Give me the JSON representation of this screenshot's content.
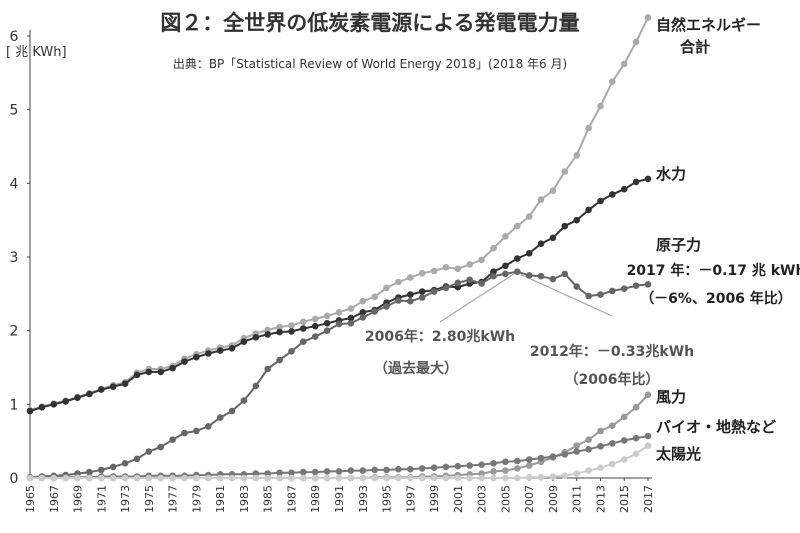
{
  "chart_data": {
    "type": "line",
    "title": "図２：全世界の低炭素電源による発電電力量",
    "subtitle": "出典：BP「Statistical Review of World Energy 2018」(2018 年6 月)",
    "ylabel": "[ 兆 KWh]",
    "xlabel": "",
    "ylim": [
      0,
      6
    ],
    "xlim": [
      1965,
      2017
    ],
    "yticks": [
      "0",
      "1",
      "2",
      "3",
      "4",
      "5",
      "6"
    ],
    "xticks": [
      "1965",
      "1967",
      "1969",
      "1971",
      "1973",
      "1975",
      "1977",
      "1979",
      "1981",
      "1983",
      "1985",
      "1987",
      "1989",
      "1991",
      "1993",
      "1995",
      "1997",
      "1999",
      "2001",
      "2003",
      "2005",
      "2007",
      "2009",
      "2011",
      "2013",
      "2015",
      "2017"
    ],
    "grid": false,
    "legend": "none",
    "series": [
      {
        "name": "自然エネルギー合計",
        "label_lines": [
          "自然エネルギー",
          "合計"
        ],
        "color": "#aaaaaa",
        "x": [
          1965,
          1966,
          1967,
          1968,
          1969,
          1970,
          1971,
          1972,
          1973,
          1974,
          1975,
          1976,
          1977,
          1978,
          1979,
          1980,
          1981,
          1982,
          1983,
          1984,
          1985,
          1986,
          1987,
          1988,
          1989,
          1990,
          1991,
          1992,
          1993,
          1994,
          1995,
          1996,
          1997,
          1998,
          1999,
          2000,
          2001,
          2002,
          2003,
          2004,
          2005,
          2006,
          2007,
          2008,
          2009,
          2010,
          2011,
          2012,
          2013,
          2014,
          2015,
          2016,
          2017
        ],
        "values": [
          0.92,
          0.97,
          1.01,
          1.05,
          1.1,
          1.15,
          1.21,
          1.26,
          1.3,
          1.43,
          1.48,
          1.48,
          1.52,
          1.62,
          1.68,
          1.73,
          1.77,
          1.8,
          1.9,
          1.96,
          2.01,
          2.05,
          2.07,
          2.12,
          2.16,
          2.2,
          2.25,
          2.3,
          2.4,
          2.46,
          2.58,
          2.66,
          2.72,
          2.78,
          2.81,
          2.86,
          2.84,
          2.9,
          2.96,
          3.12,
          3.28,
          3.42,
          3.55,
          3.78,
          3.9,
          4.16,
          4.38,
          4.75,
          5.05,
          5.38,
          5.62,
          5.92,
          6.25
        ]
      },
      {
        "name": "水力",
        "label_lines": [
          "水力"
        ],
        "color": "#333333",
        "x": [
          1965,
          1966,
          1967,
          1968,
          1969,
          1970,
          1971,
          1972,
          1973,
          1974,
          1975,
          1976,
          1977,
          1978,
          1979,
          1980,
          1981,
          1982,
          1983,
          1984,
          1985,
          1986,
          1987,
          1988,
          1989,
          1990,
          1991,
          1992,
          1993,
          1994,
          1995,
          1996,
          1997,
          1998,
          1999,
          2000,
          2001,
          2002,
          2003,
          2004,
          2005,
          2006,
          2007,
          2008,
          2009,
          2010,
          2011,
          2012,
          2013,
          2014,
          2015,
          2016,
          2017
        ],
        "values": [
          0.91,
          0.96,
          1.0,
          1.04,
          1.09,
          1.14,
          1.2,
          1.24,
          1.28,
          1.4,
          1.44,
          1.44,
          1.49,
          1.58,
          1.64,
          1.69,
          1.73,
          1.76,
          1.85,
          1.91,
          1.95,
          1.98,
          1.99,
          2.03,
          2.06,
          2.1,
          2.14,
          2.17,
          2.25,
          2.28,
          2.38,
          2.45,
          2.49,
          2.53,
          2.55,
          2.6,
          2.59,
          2.64,
          2.66,
          2.8,
          2.88,
          2.98,
          3.05,
          3.18,
          3.26,
          3.42,
          3.5,
          3.64,
          3.76,
          3.85,
          3.92,
          4.02,
          4.06
        ]
      },
      {
        "name": "原子力",
        "label_lines": [
          "原子力"
        ],
        "color": "#666666",
        "x": [
          1965,
          1966,
          1967,
          1968,
          1969,
          1970,
          1971,
          1972,
          1973,
          1974,
          1975,
          1976,
          1977,
          1978,
          1979,
          1980,
          1981,
          1982,
          1983,
          1984,
          1985,
          1986,
          1987,
          1988,
          1989,
          1990,
          1991,
          1992,
          1993,
          1994,
          1995,
          1996,
          1997,
          1998,
          1999,
          2000,
          2001,
          2002,
          2003,
          2004,
          2005,
          2006,
          2007,
          2008,
          2009,
          2010,
          2011,
          2012,
          2013,
          2014,
          2015,
          2016,
          2017
        ],
        "values": [
          0.01,
          0.02,
          0.03,
          0.04,
          0.06,
          0.08,
          0.11,
          0.15,
          0.2,
          0.26,
          0.36,
          0.42,
          0.52,
          0.61,
          0.64,
          0.7,
          0.82,
          0.91,
          1.05,
          1.25,
          1.48,
          1.6,
          1.72,
          1.85,
          1.92,
          2.0,
          2.09,
          2.1,
          2.18,
          2.26,
          2.33,
          2.41,
          2.4,
          2.45,
          2.53,
          2.58,
          2.65,
          2.69,
          2.64,
          2.74,
          2.77,
          2.8,
          2.75,
          2.74,
          2.7,
          2.77,
          2.6,
          2.47,
          2.49,
          2.54,
          2.57,
          2.61,
          2.63
        ]
      },
      {
        "name": "風力",
        "label_lines": [
          "風力"
        ],
        "color": "#999999",
        "x": [
          1965,
          1966,
          1967,
          1968,
          1969,
          1970,
          1971,
          1972,
          1973,
          1974,
          1975,
          1976,
          1977,
          1978,
          1979,
          1980,
          1981,
          1982,
          1983,
          1984,
          1985,
          1986,
          1987,
          1988,
          1989,
          1990,
          1991,
          1992,
          1993,
          1994,
          1995,
          1996,
          1997,
          1998,
          1999,
          2000,
          2001,
          2002,
          2003,
          2004,
          2005,
          2006,
          2007,
          2008,
          2009,
          2010,
          2011,
          2012,
          2013,
          2014,
          2015,
          2016,
          2017
        ],
        "values": [
          0,
          0,
          0,
          0,
          0,
          0,
          0,
          0,
          0,
          0,
          0,
          0,
          0,
          0,
          0,
          0,
          0,
          0,
          0,
          0,
          0,
          0,
          0,
          0,
          0,
          0,
          0,
          0,
          0,
          0.01,
          0.01,
          0.01,
          0.01,
          0.02,
          0.02,
          0.03,
          0.04,
          0.05,
          0.06,
          0.09,
          0.1,
          0.13,
          0.17,
          0.22,
          0.28,
          0.35,
          0.44,
          0.52,
          0.64,
          0.71,
          0.83,
          0.96,
          1.13
        ]
      },
      {
        "name": "バイオ・地熱など",
        "label_lines": [
          "バイオ・地熱など"
        ],
        "color": "#777777",
        "x": [
          1965,
          1966,
          1967,
          1968,
          1969,
          1970,
          1971,
          1972,
          1973,
          1974,
          1975,
          1976,
          1977,
          1978,
          1979,
          1980,
          1981,
          1982,
          1983,
          1984,
          1985,
          1986,
          1987,
          1988,
          1989,
          1990,
          1991,
          1992,
          1993,
          1994,
          1995,
          1996,
          1997,
          1998,
          1999,
          2000,
          2001,
          2002,
          2003,
          2004,
          2005,
          2006,
          2007,
          2008,
          2009,
          2010,
          2011,
          2012,
          2013,
          2014,
          2015,
          2016,
          2017
        ],
        "values": [
          0.01,
          0.01,
          0.01,
          0.01,
          0.01,
          0.01,
          0.02,
          0.02,
          0.02,
          0.02,
          0.03,
          0.03,
          0.03,
          0.03,
          0.04,
          0.04,
          0.05,
          0.05,
          0.05,
          0.06,
          0.06,
          0.07,
          0.07,
          0.08,
          0.08,
          0.09,
          0.09,
          0.1,
          0.1,
          0.11,
          0.11,
          0.12,
          0.12,
          0.13,
          0.14,
          0.15,
          0.16,
          0.17,
          0.18,
          0.2,
          0.22,
          0.23,
          0.25,
          0.27,
          0.29,
          0.32,
          0.36,
          0.39,
          0.43,
          0.47,
          0.51,
          0.54,
          0.57
        ]
      },
      {
        "name": "太陽光",
        "label_lines": [
          "太陽光"
        ],
        "color": "#cccccc",
        "x": [
          1965,
          1966,
          1967,
          1968,
          1969,
          1970,
          1971,
          1972,
          1973,
          1974,
          1975,
          1976,
          1977,
          1978,
          1979,
          1980,
          1981,
          1982,
          1983,
          1984,
          1985,
          1986,
          1987,
          1988,
          1989,
          1990,
          1991,
          1992,
          1993,
          1994,
          1995,
          1996,
          1997,
          1998,
          1999,
          2000,
          2001,
          2002,
          2003,
          2004,
          2005,
          2006,
          2007,
          2008,
          2009,
          2010,
          2011,
          2012,
          2013,
          2014,
          2015,
          2016,
          2017
        ],
        "values": [
          0,
          0,
          0,
          0,
          0,
          0,
          0,
          0,
          0,
          0,
          0,
          0,
          0,
          0,
          0,
          0,
          0,
          0,
          0,
          0,
          0,
          0,
          0,
          0,
          0,
          0,
          0,
          0,
          0,
          0,
          0,
          0,
          0,
          0,
          0,
          0,
          0,
          0,
          0,
          0,
          0,
          0,
          0.01,
          0.01,
          0.02,
          0.03,
          0.06,
          0.1,
          0.14,
          0.19,
          0.25,
          0.33,
          0.44
        ]
      }
    ],
    "annotations": [
      {
        "id": "peak-2006",
        "lines": [
          "2006年：2.80兆kWh",
          "（過去最大）"
        ],
        "point": {
          "x": 2006,
          "y": 2.8
        }
      },
      {
        "id": "drop-2012",
        "lines": [
          "2012年：－0.33兆kWh",
          "（2006年比）"
        ],
        "point": {
          "x": 2012,
          "y": 2.47
        }
      },
      {
        "id": "nuclear-2017",
        "lines": [
          "2017 年：－0.17 兆 kWh",
          "（－6%、2006 年比）"
        ]
      }
    ]
  }
}
